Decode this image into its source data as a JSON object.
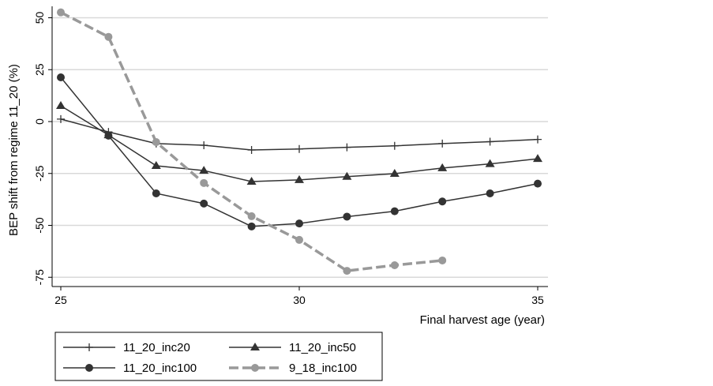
{
  "chart_data": {
    "type": "line",
    "title": "",
    "xlabel": "Final harvest age (year)",
    "ylabel": "BEP shift from regime 11_20 (%)",
    "xlim": [
      25,
      35
    ],
    "ylim": [
      -75,
      55
    ],
    "xticks": [
      25,
      30,
      35
    ],
    "yticks": [
      50,
      25,
      0,
      -25,
      -50,
      -75
    ],
    "grid": true,
    "legend_position": "bottom",
    "x": [
      25,
      26,
      27,
      28,
      29,
      30,
      31,
      32,
      33,
      34,
      35
    ],
    "series": [
      {
        "name": "11_20_inc20",
        "marker": "plus",
        "color": "#333333",
        "dashed": false,
        "values": [
          1.2,
          -5,
          -10.6,
          -11.4,
          -13.7,
          -13.2,
          -12.4,
          -11.7,
          -10.6,
          -9.7,
          -8.6
        ]
      },
      {
        "name": "11_20_inc50",
        "marker": "triangle",
        "color": "#333333",
        "dashed": false,
        "values": [
          7.6,
          -6.5,
          -21.3,
          -23.6,
          -28.9,
          -28.1,
          -26.5,
          -25.1,
          -22.4,
          -20.4,
          -17.9
        ]
      },
      {
        "name": "11_20_inc100",
        "marker": "circle",
        "color": "#333333",
        "dashed": false,
        "values": [
          21.3,
          -6.8,
          -34.6,
          -39.5,
          -50.5,
          -49.1,
          -45.8,
          -43.2,
          -38.5,
          -34.6,
          -29.9
        ]
      },
      {
        "name": "9_18_inc100",
        "marker": "circle",
        "color": "#999999",
        "dashed": true,
        "values": [
          52.6,
          40.8,
          -9.9,
          -29.6,
          -45.6,
          -57,
          -71.9,
          -69.2,
          -66.9,
          null,
          null
        ]
      }
    ]
  }
}
